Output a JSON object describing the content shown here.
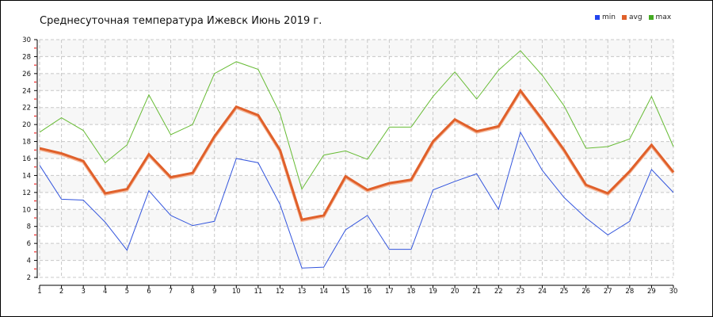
{
  "chart_data": {
    "type": "line",
    "title": "Среднесуточная температура Ижевск  Июнь 2019 г.",
    "xlabel": "",
    "ylabel": "",
    "x": [
      1,
      2,
      3,
      4,
      5,
      6,
      7,
      8,
      9,
      10,
      11,
      12,
      13,
      14,
      15,
      16,
      17,
      18,
      19,
      20,
      21,
      22,
      23,
      24,
      25,
      26,
      27,
      28,
      29,
      30
    ],
    "ylim": [
      2,
      30
    ],
    "yticks": [
      2,
      4,
      6,
      8,
      10,
      12,
      14,
      16,
      18,
      20,
      22,
      24,
      26,
      28,
      30
    ],
    "grid": true,
    "legend_position": "top-right",
    "series": [
      {
        "name": "min",
        "color": "#3355dd",
        "values": [
          15.2,
          11.2,
          11.1,
          8.5,
          5.2,
          12.2,
          9.3,
          8.1,
          8.6,
          16.0,
          15.5,
          10.6,
          3.1,
          3.2,
          7.6,
          9.3,
          5.3,
          5.3,
          12.3,
          13.3,
          14.2,
          10.0,
          19.1,
          14.6,
          11.4,
          9.0,
          7.0,
          8.6,
          14.7,
          12.0
        ]
      },
      {
        "name": "avg",
        "color": "#e0602a",
        "values": [
          17.2,
          16.6,
          15.7,
          11.9,
          12.4,
          16.5,
          13.8,
          14.3,
          18.6,
          22.1,
          21.1,
          17.0,
          8.8,
          9.3,
          13.9,
          12.3,
          13.1,
          13.5,
          18.0,
          20.6,
          19.2,
          19.8,
          24.0,
          20.6,
          17.0,
          12.9,
          11.9,
          14.5,
          17.6,
          14.4
        ]
      },
      {
        "name": "max",
        "color": "#66bb33",
        "values": [
          19.1,
          20.8,
          19.3,
          15.5,
          17.6,
          23.5,
          18.8,
          20.0,
          26.0,
          27.4,
          26.5,
          21.3,
          12.4,
          16.4,
          16.9,
          15.9,
          19.7,
          19.7,
          23.3,
          26.2,
          23.0,
          26.4,
          28.7,
          25.8,
          22.2,
          17.2,
          17.4,
          18.3,
          23.3,
          17.4
        ]
      }
    ]
  }
}
